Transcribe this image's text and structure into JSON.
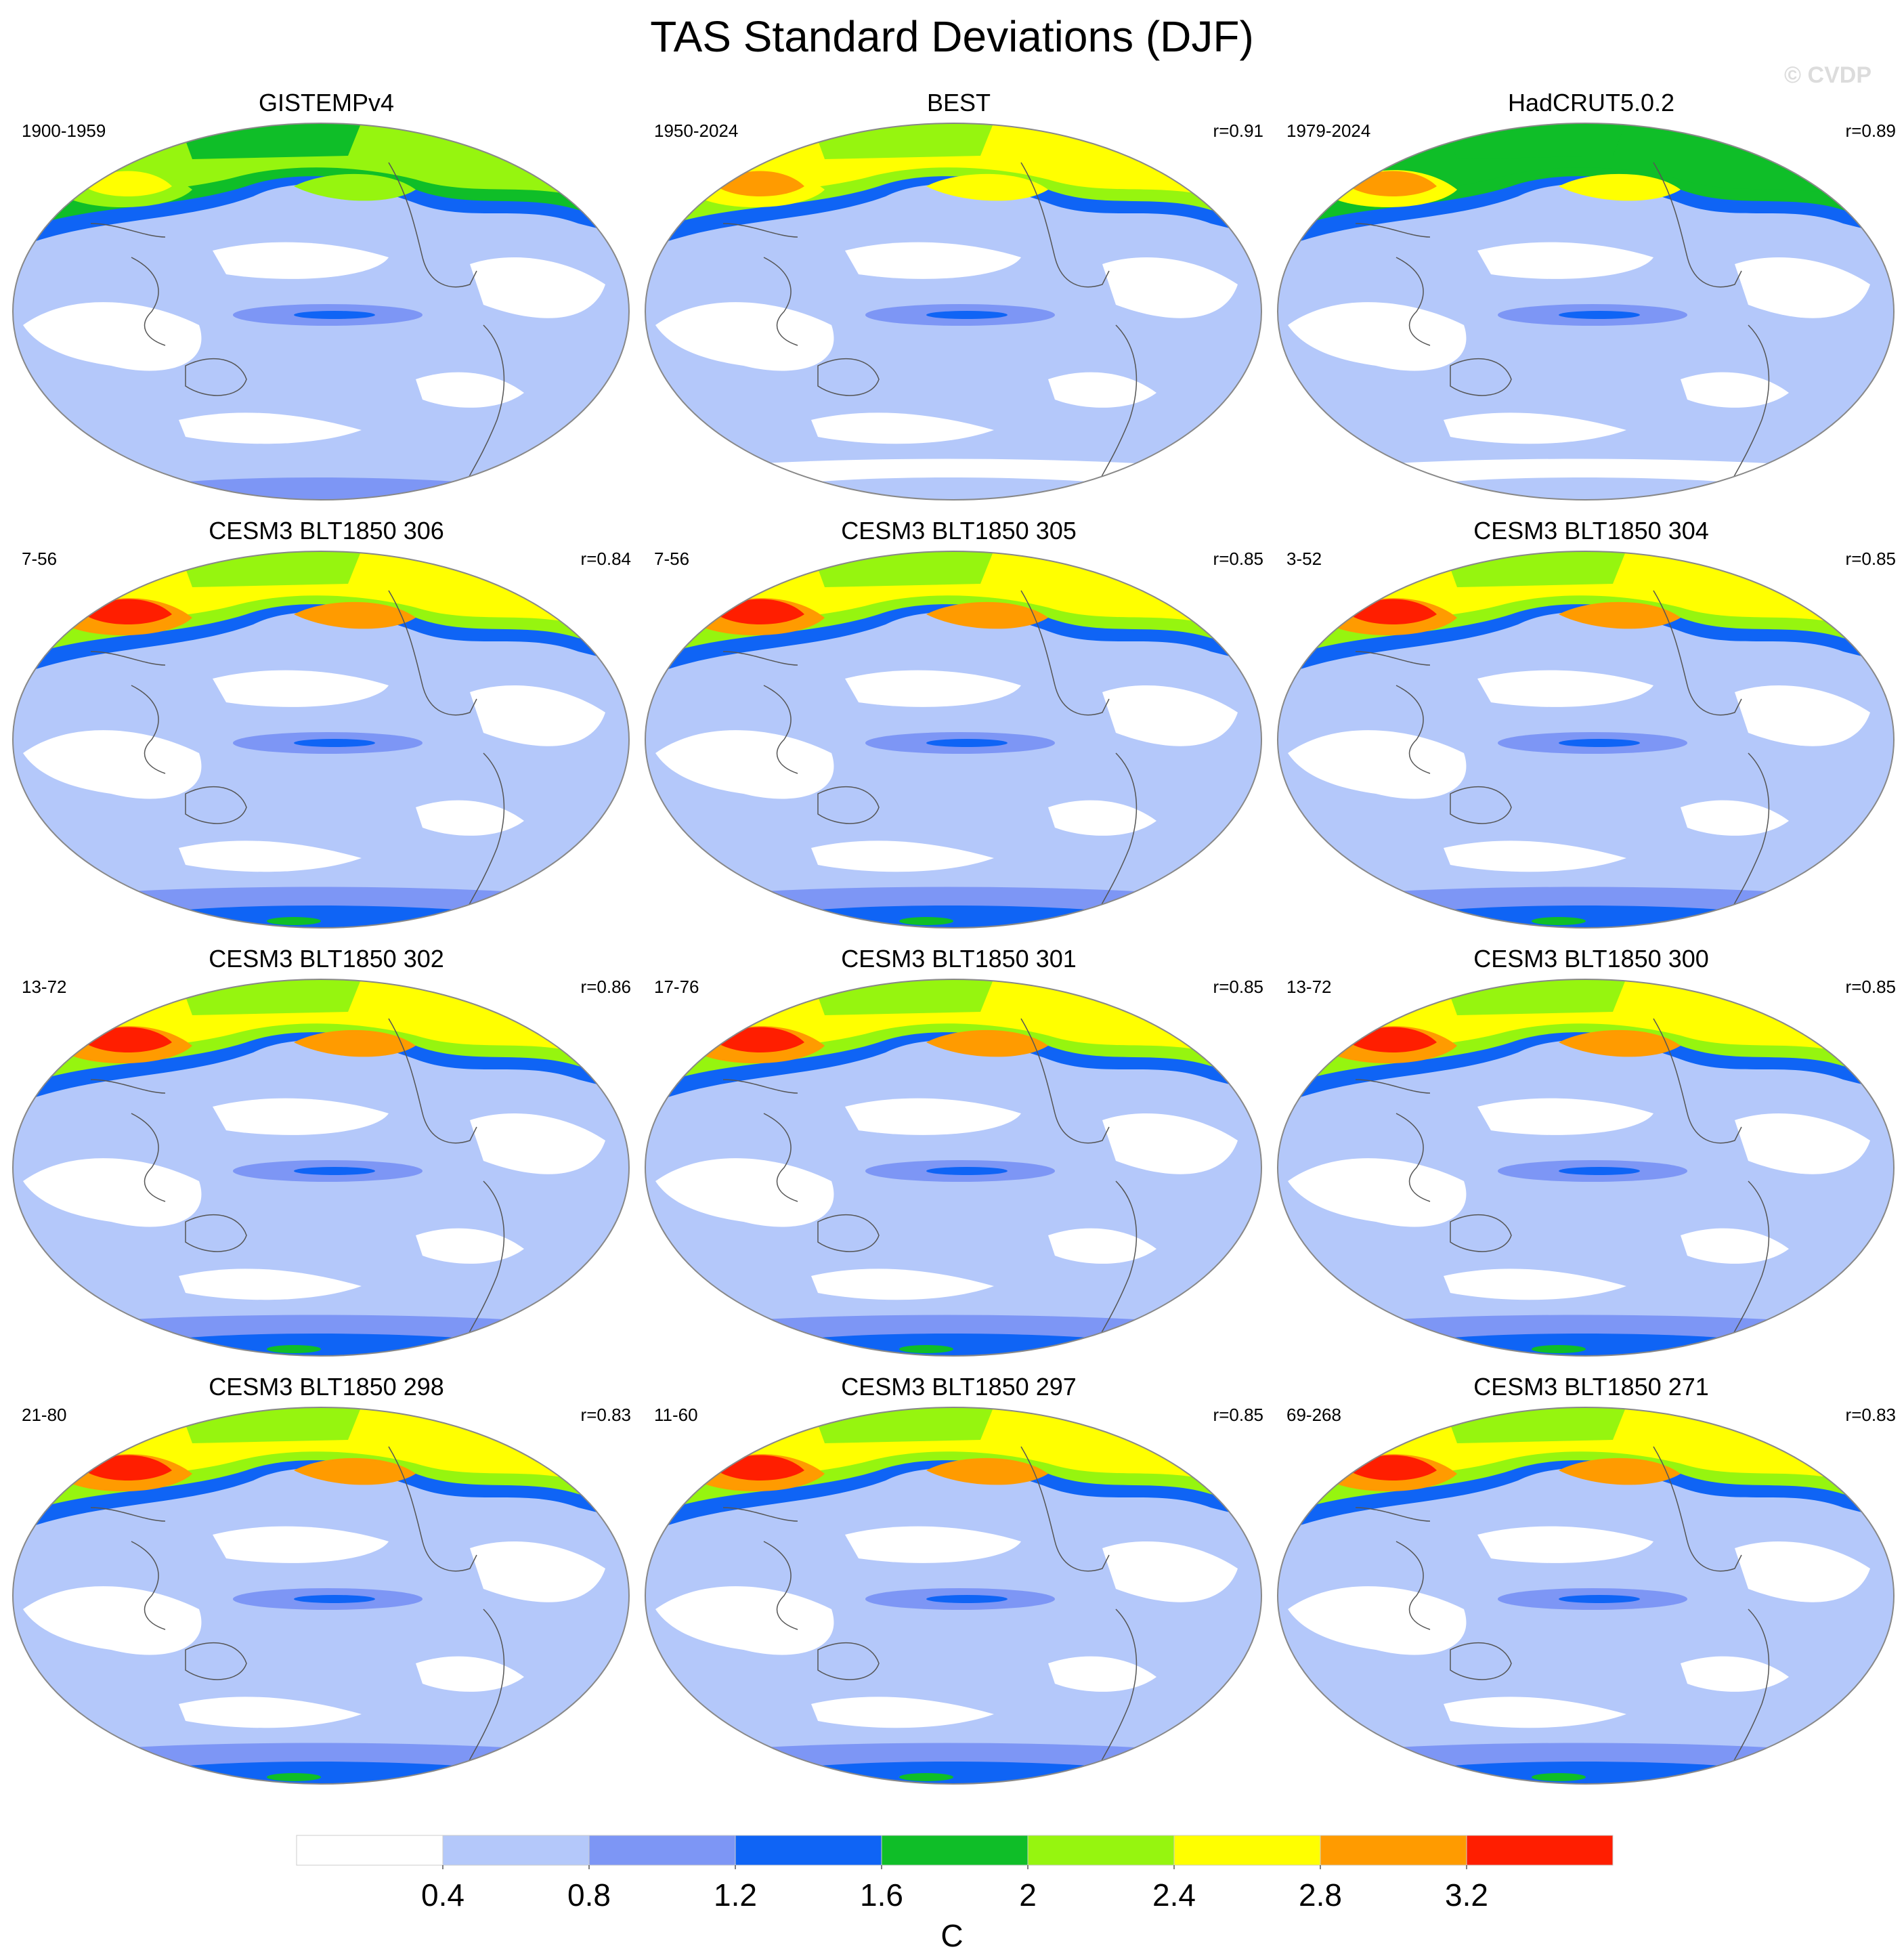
{
  "title": "TAS Standard Deviations (DJF)",
  "watermark": "© CVDP",
  "colors": {
    "levels": [
      "#ffffff",
      "#b4c8fa",
      "#7d96f5",
      "#0f64f5",
      "#0fbe28",
      "#96f50f",
      "#ffff00",
      "#ff9b00",
      "#ff1e00"
    ],
    "coastline": "#555555",
    "outline": "#888888"
  },
  "chart_data": {
    "type": "heatmap",
    "title": "TAS Standard Deviations (DJF)",
    "colorbar": {
      "label": "C",
      "ticks": [
        "0.4",
        "0.8",
        "1.2",
        "1.6",
        "2",
        "2.4",
        "2.8",
        "3.2"
      ],
      "levels": [
        0.4,
        0.8,
        1.2,
        1.6,
        2.0,
        2.4,
        2.8,
        3.2
      ]
    },
    "panels": [
      {
        "title": "GISTEMPv4",
        "period": "1900-1959",
        "r": "",
        "nh_level": 5,
        "arctic_level": 6,
        "sh_level": 2
      },
      {
        "title": "BEST",
        "period": "1950-2024",
        "r": "r=0.91",
        "nh_level": 6,
        "arctic_level": 7,
        "sh_level": 1
      },
      {
        "title": "HadCRUT5.0.2",
        "period": "1979-2024",
        "r": "r=0.89",
        "nh_level": 4,
        "arctic_level": 7,
        "sh_level": 1
      },
      {
        "title": "CESM3 BLT1850 306",
        "period": "7-56",
        "r": "r=0.84",
        "nh_level": 6,
        "arctic_level": 8,
        "sh_level": 3
      },
      {
        "title": "CESM3 BLT1850 305",
        "period": "7-56",
        "r": "r=0.85",
        "nh_level": 6,
        "arctic_level": 8,
        "sh_level": 3
      },
      {
        "title": "CESM3 BLT1850 304",
        "period": "3-52",
        "r": "r=0.85",
        "nh_level": 6,
        "arctic_level": 8,
        "sh_level": 3
      },
      {
        "title": "CESM3 BLT1850 302",
        "period": "13-72",
        "r": "r=0.86",
        "nh_level": 6,
        "arctic_level": 8,
        "sh_level": 3
      },
      {
        "title": "CESM3 BLT1850 301",
        "period": "17-76",
        "r": "r=0.85",
        "nh_level": 6,
        "arctic_level": 8,
        "sh_level": 3
      },
      {
        "title": "CESM3 BLT1850 300",
        "period": "13-72",
        "r": "r=0.85",
        "nh_level": 6,
        "arctic_level": 8,
        "sh_level": 3
      },
      {
        "title": "CESM3 BLT1850 298",
        "period": "21-80",
        "r": "r=0.83",
        "nh_level": 6,
        "arctic_level": 8,
        "sh_level": 3
      },
      {
        "title": "CESM3 BLT1850 297",
        "period": "11-60",
        "r": "r=0.85",
        "nh_level": 6,
        "arctic_level": 8,
        "sh_level": 3
      },
      {
        "title": "CESM3 BLT1850 271",
        "period": "69-268",
        "r": "r=0.83",
        "nh_level": 6,
        "arctic_level": 8,
        "sh_level": 3
      }
    ]
  }
}
